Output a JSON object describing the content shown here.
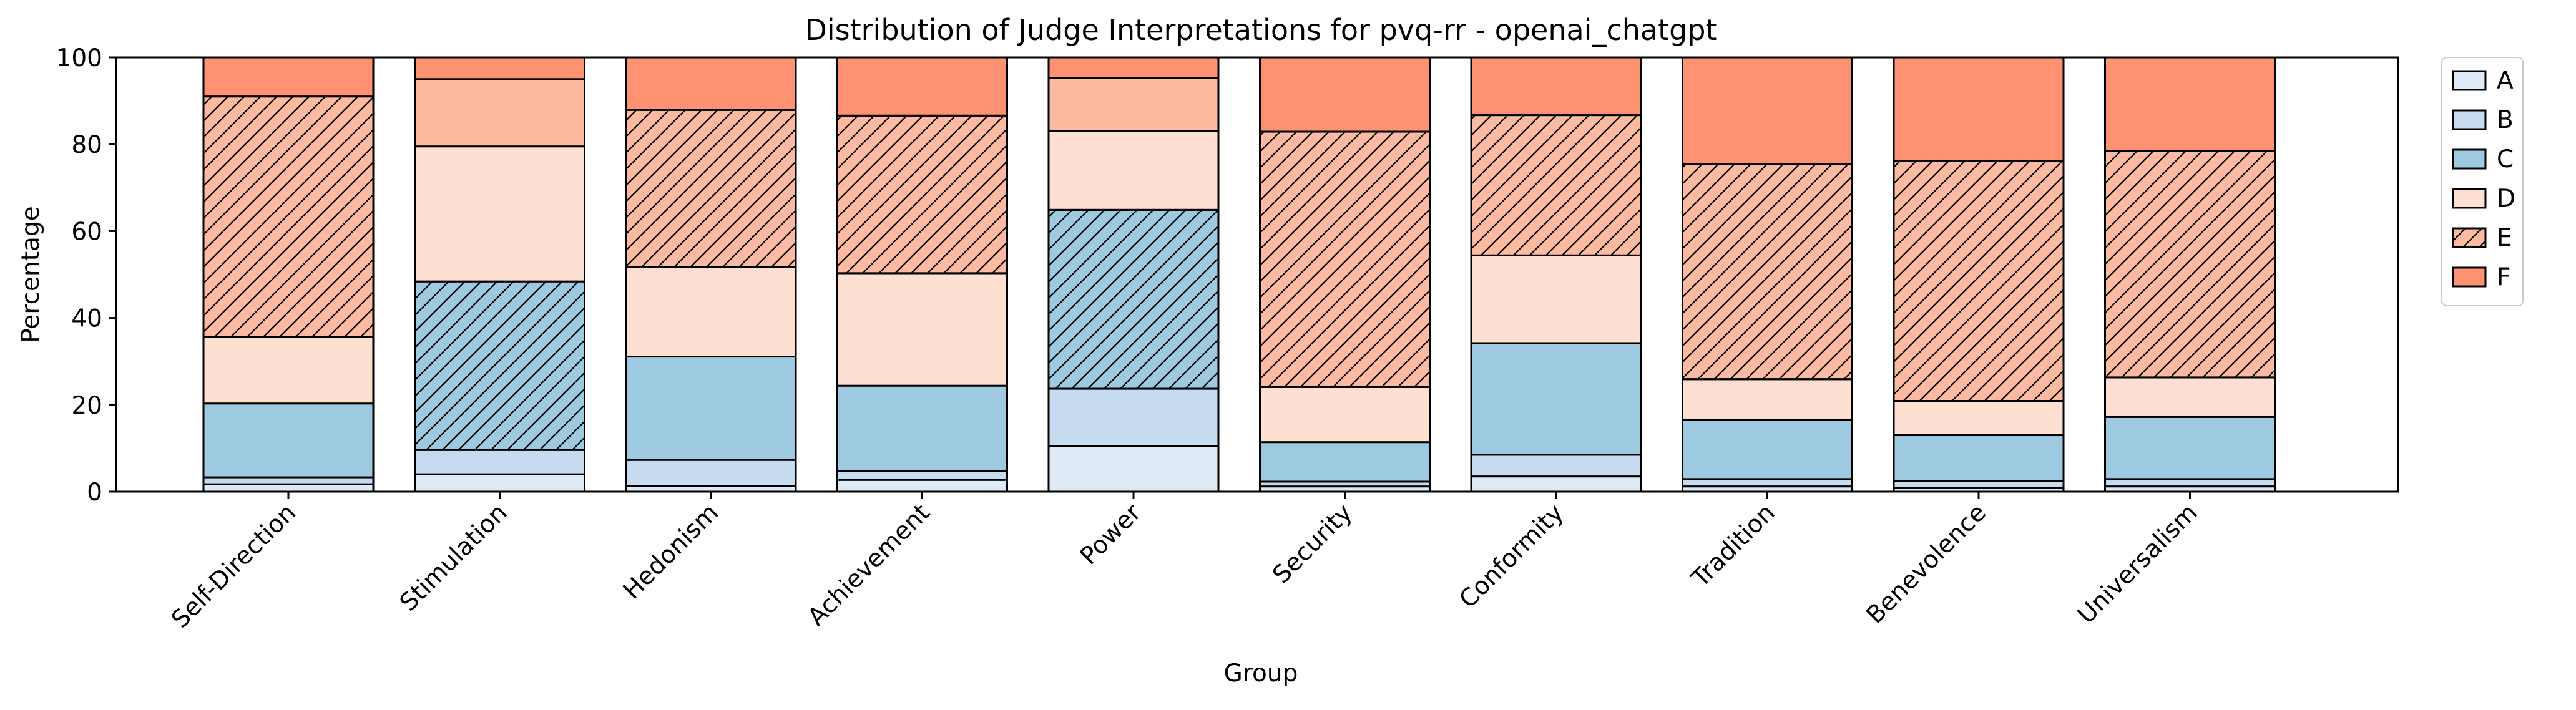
{
  "chart_data": {
    "type": "bar",
    "stacked": true,
    "title": "Distribution of Judge Interpretations for pvq-rr - openai_chatgpt",
    "xlabel": "Group",
    "ylabel": "Percentage",
    "ylim": [
      0,
      100
    ],
    "yticks": [
      0,
      20,
      40,
      60,
      80,
      100
    ],
    "grid": false,
    "legend_position": "outside-top-right",
    "categories": [
      "Self-Direction",
      "Stimulation",
      "Hedonism",
      "Achievement",
      "Power",
      "Security",
      "Conformity",
      "Tradition",
      "Benevolence",
      "Universalism"
    ],
    "series": [
      {
        "name": "A",
        "color": "#deebf7",
        "values": [
          1.7,
          4.0,
          1.3,
          2.7,
          10.5,
          1.2,
          3.5,
          1.2,
          0.9,
          1.2
        ]
      },
      {
        "name": "B",
        "color": "#c6dbef",
        "values": [
          1.6,
          5.6,
          6.0,
          2.0,
          13.2,
          1.1,
          5.0,
          1.7,
          1.5,
          1.7
        ]
      },
      {
        "name": "C",
        "color": "#9ecae1",
        "values": [
          17.0,
          38.8,
          23.8,
          19.7,
          41.2,
          9.1,
          25.7,
          13.6,
          10.6,
          14.3
        ]
      },
      {
        "name": "D",
        "color": "#fee0d2",
        "values": [
          15.4,
          31.1,
          20.6,
          25.9,
          18.1,
          12.7,
          20.2,
          9.4,
          7.9,
          9.1
        ]
      },
      {
        "name": "E",
        "color": "#fcbba1",
        "values": [
          55.3,
          15.5,
          36.2,
          36.3,
          12.2,
          58.8,
          32.3,
          49.6,
          55.3,
          52.1
        ]
      },
      {
        "name": "F",
        "color": "#fc9272",
        "values": [
          9.0,
          5.0,
          12.1,
          13.4,
          4.8,
          17.1,
          13.3,
          24.5,
          23.8,
          21.6
        ]
      }
    ],
    "hatched": [
      {
        "category": "Self-Direction",
        "series": "E"
      },
      {
        "category": "Stimulation",
        "series": "C"
      },
      {
        "category": "Hedonism",
        "series": "E"
      },
      {
        "category": "Achievement",
        "series": "E"
      },
      {
        "category": "Power",
        "series": "C"
      },
      {
        "category": "Security",
        "series": "E"
      },
      {
        "category": "Conformity",
        "series": "E"
      },
      {
        "category": "Tradition",
        "series": "E"
      },
      {
        "category": "Benevolence",
        "series": "E"
      },
      {
        "category": "Universalism",
        "series": "E"
      }
    ],
    "legend_hatched_series": "E"
  }
}
